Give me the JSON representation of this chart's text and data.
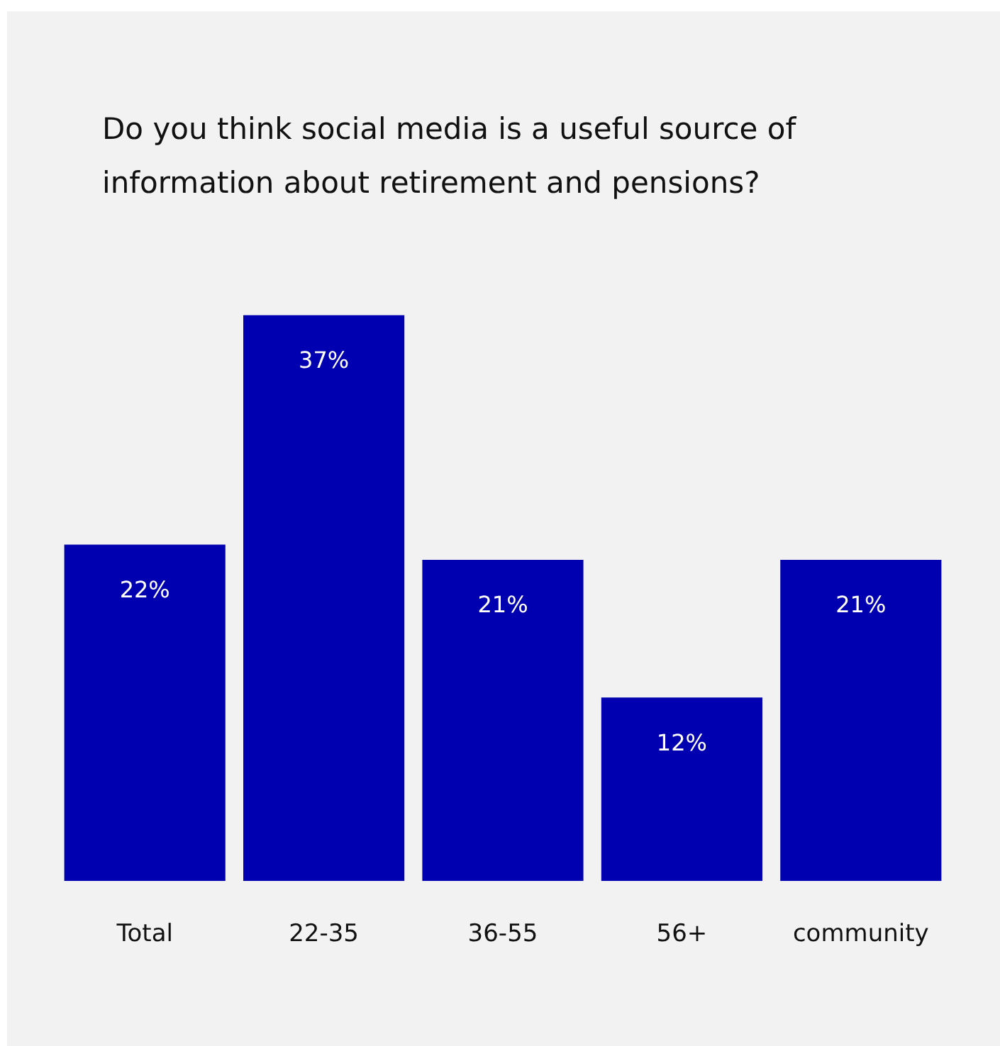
{
  "chart_data": {
    "type": "bar",
    "title": "Do you think social media is a useful source of information about retirement and pensions?",
    "categories": [
      "Total",
      "22-35",
      "36-55",
      "56+",
      "community"
    ],
    "values": [
      22,
      37,
      21,
      12,
      21
    ],
    "value_labels": [
      "22%",
      "37%",
      "21%",
      "12%",
      "21%"
    ],
    "color": "#0000b0",
    "grid": false,
    "legend": false
  }
}
